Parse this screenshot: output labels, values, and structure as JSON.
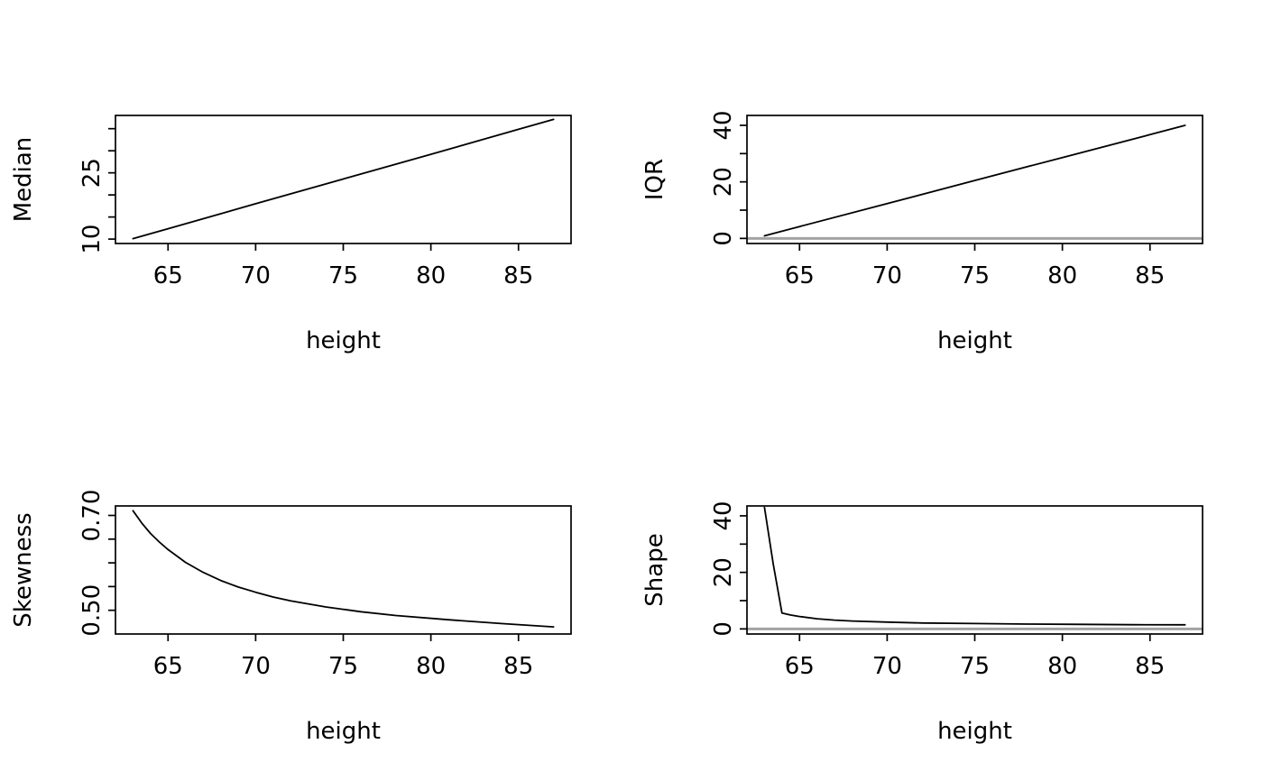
{
  "figure": {
    "background": "#ffffff",
    "line_color": "#000000",
    "reference_line_color": "#a3a3a3",
    "axis_color": "#000000",
    "layout": "2x2 grid of R base-graphics line plots"
  },
  "chart_data": [
    {
      "type": "line",
      "panel": "top-left",
      "title": "",
      "xlabel": "height",
      "ylabel": "Median",
      "xlim": [
        62,
        88
      ],
      "ylim": [
        9,
        38
      ],
      "grid": false,
      "legend": "none",
      "xticks": [
        65,
        70,
        75,
        80,
        85
      ],
      "xtick_labels": [
        "65",
        "70",
        "75",
        "80",
        "85"
      ],
      "yticks": [
        10,
        15,
        20,
        25,
        30,
        35
      ],
      "ytick_labels": [
        "10",
        "",
        "",
        "25",
        "",
        ""
      ],
      "x": [
        63,
        65,
        70,
        75,
        80,
        85,
        87
      ],
      "y": [
        10.1,
        12.35,
        18.0,
        23.6,
        29.2,
        34.85,
        37.1
      ]
    },
    {
      "type": "line",
      "panel": "top-right",
      "title": "",
      "xlabel": "height",
      "ylabel": "IQR",
      "xlim": [
        62,
        88
      ],
      "ylim": [
        -1.8,
        43.5
      ],
      "grid": false,
      "legend": "none",
      "refline": 0,
      "xticks": [
        65,
        70,
        75,
        80,
        85
      ],
      "xtick_labels": [
        "65",
        "70",
        "75",
        "80",
        "85"
      ],
      "yticks": [
        0,
        10,
        20,
        30,
        40
      ],
      "ytick_labels": [
        "0",
        "",
        "20",
        "",
        "40"
      ],
      "x": [
        63,
        65,
        70,
        75,
        80,
        85,
        87
      ],
      "y": [
        0.9,
        4.2,
        12.3,
        20.5,
        28.6,
        36.7,
        40.0
      ]
    },
    {
      "type": "line",
      "panel": "bottom-left",
      "title": "",
      "xlabel": "height",
      "ylabel": "Skewness",
      "xlim": [
        62,
        88
      ],
      "ylim": [
        0.45,
        0.72
      ],
      "grid": false,
      "legend": "none",
      "xticks": [
        65,
        70,
        75,
        80,
        85
      ],
      "xtick_labels": [
        "65",
        "70",
        "75",
        "80",
        "85"
      ],
      "yticks": [
        0.5,
        0.55,
        0.6,
        0.65,
        0.7
      ],
      "ytick_labels": [
        "0.50",
        "",
        "",
        "",
        "0.70"
      ],
      "x": [
        63,
        63.5,
        64,
        64.5,
        65,
        66,
        67,
        68,
        69,
        70,
        71,
        72,
        74,
        76,
        78,
        81,
        84,
        87
      ],
      "y": [
        0.71,
        0.684,
        0.662,
        0.644,
        0.628,
        0.601,
        0.58,
        0.563,
        0.549,
        0.538,
        0.528,
        0.52,
        0.507,
        0.497,
        0.489,
        0.48,
        0.472,
        0.465
      ]
    },
    {
      "type": "line",
      "panel": "bottom-right",
      "title": "",
      "xlabel": "height",
      "ylabel": "Shape",
      "xlim": [
        62,
        88
      ],
      "ylim": [
        -1.8,
        43.5
      ],
      "grid": false,
      "legend": "none",
      "refline": 0,
      "xticks": [
        65,
        70,
        75,
        80,
        85
      ],
      "xtick_labels": [
        "65",
        "70",
        "75",
        "80",
        "85"
      ],
      "yticks": [
        0,
        10,
        20,
        30,
        40
      ],
      "ytick_labels": [
        "0",
        "",
        "20",
        "",
        "40"
      ],
      "x": [
        63,
        63.5,
        64,
        64.5,
        65,
        66,
        67,
        68,
        70,
        72,
        75,
        78,
        81,
        84,
        87
      ],
      "y": [
        43,
        23,
        5.6,
        4.9,
        4.4,
        3.6,
        3.1,
        2.8,
        2.4,
        2.1,
        1.9,
        1.7,
        1.6,
        1.5,
        1.45
      ]
    }
  ]
}
